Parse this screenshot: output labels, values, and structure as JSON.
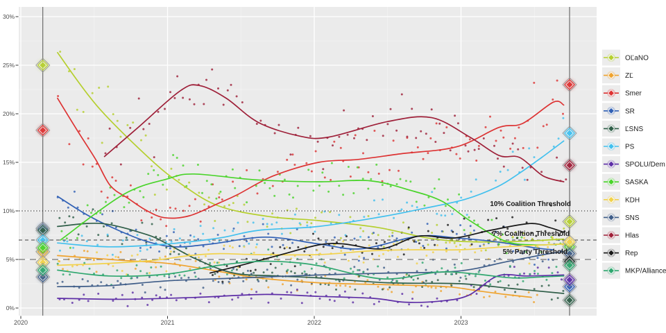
{
  "chart_data": {
    "type": "scatter",
    "description_visible_text_only": true,
    "x_axis": {
      "tick_labels": [
        "2020",
        "2021",
        "2022",
        "2023"
      ],
      "tick_years": [
        2020,
        2021,
        2022,
        2023
      ],
      "range_years": [
        2019.985,
        2023.93
      ]
    },
    "y_axis": {
      "tick_labels": [
        "0%",
        "5%",
        "10%",
        "15%",
        "20%",
        "25%",
        "30%"
      ],
      "tick_values": [
        0,
        5,
        10,
        15,
        20,
        25,
        30
      ],
      "range": [
        -0.8,
        31.0
      ],
      "unit": "%"
    },
    "grid": {
      "major_color": "#ffffff",
      "minor_color": "#f4f4f4",
      "panel_color": "#ebebeb"
    },
    "thresholds": [
      {
        "value": 10,
        "label": "10% Coalition Threshold",
        "style": "dotted",
        "color": "#2b2b2b"
      },
      {
        "value": 7,
        "label": "7% Coalition Threshold",
        "style": "dashed",
        "color": "#3d3d3d"
      },
      {
        "value": 5,
        "label": "5% Party Threshold",
        "style": "longdash",
        "color": "#757575"
      }
    ],
    "election_line_years": [
      2020.15,
      2023.74
    ],
    "election_line_color": "#5f5f5f",
    "series": [
      {
        "name": "OĽaNO",
        "id": "olano",
        "color": "#b5cf2e",
        "trend": [
          [
            2020.25,
            26.3
          ],
          [
            2020.52,
            20.8
          ],
          [
            2020.87,
            15.5
          ],
          [
            2021.09,
            12.8
          ],
          [
            2021.35,
            10.5
          ],
          [
            2021.7,
            9.4
          ],
          [
            2022.03,
            9.0
          ],
          [
            2022.43,
            8.3
          ],
          [
            2022.74,
            7.3
          ],
          [
            2022.95,
            6.9
          ],
          [
            2023.2,
            6.8
          ],
          [
            2023.45,
            6.9
          ],
          [
            2023.7,
            7.1
          ]
        ],
        "result_2020": 25.0,
        "result_2023": 8.9
      },
      {
        "name": "ZĽ",
        "id": "zl",
        "color": "#efa32e",
        "trend": [
          [
            2020.25,
            5.4
          ],
          [
            2020.7,
            4.9
          ],
          [
            2021.0,
            4.6
          ],
          [
            2021.3,
            3.9
          ],
          [
            2021.62,
            3.1
          ],
          [
            2022.03,
            2.6
          ],
          [
            2022.5,
            2.4
          ],
          [
            2022.9,
            2.2
          ],
          [
            2023.1,
            1.8
          ],
          [
            2023.3,
            1.4
          ],
          [
            2023.48,
            1.1
          ]
        ],
        "result_2020": 5.8,
        "result_2023": null
      },
      {
        "name": "Smer",
        "id": "smer",
        "color": "#dd3333",
        "trend": [
          [
            2020.25,
            21.6
          ],
          [
            2020.38,
            18.4
          ],
          [
            2020.51,
            15.3
          ],
          [
            2020.61,
            12.6
          ],
          [
            2020.73,
            11.3
          ],
          [
            2020.85,
            10.1
          ],
          [
            2020.98,
            9.3
          ],
          [
            2021.15,
            9.5
          ],
          [
            2021.35,
            10.8
          ],
          [
            2021.48,
            11.7
          ],
          [
            2021.72,
            13.6
          ],
          [
            2022.03,
            15.0
          ],
          [
            2022.3,
            15.3
          ],
          [
            2022.6,
            15.9
          ],
          [
            2022.97,
            16.6
          ],
          [
            2023.26,
            18.6
          ],
          [
            2023.42,
            19.0
          ],
          [
            2023.63,
            21.2
          ],
          [
            2023.7,
            20.9
          ]
        ],
        "result_2020": 18.3,
        "result_2023": 23.0
      },
      {
        "name": "SR",
        "id": "sr",
        "color": "#3060b5",
        "trend": [
          [
            2020.25,
            11.5
          ],
          [
            2020.45,
            9.6
          ],
          [
            2020.65,
            8.1
          ],
          [
            2020.85,
            6.9
          ],
          [
            2021.05,
            6.3
          ],
          [
            2021.3,
            6.6
          ],
          [
            2021.67,
            7.3
          ],
          [
            2022.03,
            6.6
          ],
          [
            2022.32,
            6.1
          ],
          [
            2022.71,
            7.4
          ],
          [
            2022.98,
            7.2
          ],
          [
            2023.25,
            6.8
          ],
          [
            2023.5,
            6.2
          ],
          [
            2023.63,
            6.0
          ]
        ],
        "result_2020": 8.2,
        "result_2023": 2.2
      },
      {
        "name": "ĽSNS",
        "id": "lsns",
        "color": "#2f5e48",
        "trend": [
          [
            2020.25,
            8.4
          ],
          [
            2020.55,
            8.7
          ],
          [
            2020.85,
            7.6
          ],
          [
            2021.0,
            6.6
          ],
          [
            2021.2,
            5.0
          ],
          [
            2021.45,
            3.6
          ],
          [
            2021.75,
            3.3
          ],
          [
            2022.03,
            3.1
          ],
          [
            2022.5,
            2.6
          ],
          [
            2023.0,
            2.5
          ],
          [
            2023.35,
            2.0
          ],
          [
            2023.7,
            1.5
          ]
        ],
        "result_2020": 8.0,
        "result_2023": 0.8
      },
      {
        "name": "PS",
        "id": "ps",
        "color": "#41c0ee",
        "trend": [
          [
            2020.25,
            6.7
          ],
          [
            2020.6,
            6.3
          ],
          [
            2021.0,
            6.6
          ],
          [
            2021.35,
            7.2
          ],
          [
            2021.62,
            8.0
          ],
          [
            2022.03,
            8.4
          ],
          [
            2022.46,
            9.4
          ],
          [
            2022.73,
            10.2
          ],
          [
            2023.03,
            11.2
          ],
          [
            2023.25,
            12.5
          ],
          [
            2023.4,
            13.9
          ],
          [
            2023.55,
            15.5
          ],
          [
            2023.7,
            17.2
          ]
        ],
        "result_2020": 7.0,
        "result_2023": 18.0
      },
      {
        "name": "SPOLU/Dem",
        "id": "spolu-dem",
        "color": "#5d2ea6",
        "trend": [
          [
            2020.25,
            1.0
          ],
          [
            2020.7,
            0.9
          ],
          [
            2021.2,
            1.1
          ],
          [
            2021.67,
            1.4
          ],
          [
            2022.03,
            1.2
          ],
          [
            2022.4,
            1.0
          ],
          [
            2022.62,
            0.6
          ],
          [
            2022.85,
            0.7
          ],
          [
            2023.05,
            1.3
          ],
          [
            2023.25,
            3.3
          ],
          [
            2023.45,
            3.3
          ],
          [
            2023.7,
            3.4
          ]
        ],
        "result_2020": null,
        "result_2023": 2.9
      },
      {
        "name": "SASKA",
        "id": "saska",
        "color": "#49d42a",
        "trend": [
          [
            2020.27,
            7.0
          ],
          [
            2020.7,
            11.7
          ],
          [
            2021.0,
            13.3
          ],
          [
            2021.18,
            13.8
          ],
          [
            2021.6,
            13.2
          ],
          [
            2022.03,
            13.0
          ],
          [
            2022.38,
            13.1
          ],
          [
            2022.66,
            12.1
          ],
          [
            2022.87,
            11.0
          ],
          [
            2023.06,
            9.0
          ],
          [
            2023.3,
            6.9
          ],
          [
            2023.5,
            6.5
          ],
          [
            2023.7,
            6.6
          ]
        ],
        "result_2020": 6.2,
        "result_2023": 6.3
      },
      {
        "name": "KDH",
        "id": "kdh",
        "color": "#f2d24b",
        "trend": [
          [
            2020.25,
            4.4
          ],
          [
            2020.6,
            4.6
          ],
          [
            2020.9,
            4.9
          ],
          [
            2021.15,
            5.4
          ],
          [
            2021.35,
            5.6
          ],
          [
            2021.62,
            5.5
          ],
          [
            2022.03,
            5.5
          ],
          [
            2022.4,
            5.9
          ],
          [
            2022.7,
            6.0
          ],
          [
            2023.0,
            6.0
          ],
          [
            2023.3,
            6.3
          ],
          [
            2023.7,
            6.6
          ]
        ],
        "result_2020": 4.7,
        "result_2023": 6.8
      },
      {
        "name": "SNS",
        "id": "sns",
        "color": "#3f5d88",
        "trend": [
          [
            2020.25,
            2.2
          ],
          [
            2020.6,
            2.3
          ],
          [
            2021.0,
            2.8
          ],
          [
            2021.5,
            3.1
          ],
          [
            2022.03,
            3.4
          ],
          [
            2022.5,
            3.6
          ],
          [
            2022.98,
            3.8
          ],
          [
            2023.32,
            4.8
          ],
          [
            2023.6,
            5.6
          ],
          [
            2023.7,
            5.8
          ]
        ],
        "result_2020": 3.2,
        "result_2023": 5.6
      },
      {
        "name": "Hlas",
        "id": "hlas",
        "color": "#9e1f38",
        "trend": [
          [
            2020.57,
            15.6
          ],
          [
            2020.8,
            18.6
          ],
          [
            2021.09,
            22.4
          ],
          [
            2021.22,
            22.9
          ],
          [
            2021.4,
            21.6
          ],
          [
            2021.62,
            19.1
          ],
          [
            2021.9,
            17.7
          ],
          [
            2022.1,
            17.6
          ],
          [
            2022.5,
            19.2
          ],
          [
            2022.8,
            19.6
          ],
          [
            2023.06,
            17.6
          ],
          [
            2023.26,
            15.7
          ],
          [
            2023.4,
            15.5
          ],
          [
            2023.56,
            13.6
          ],
          [
            2023.7,
            13.0
          ]
        ],
        "result_2020": null,
        "result_2023": 14.7
      },
      {
        "name": "Rep",
        "id": "rep",
        "color": "#161616",
        "trend": [
          [
            2021.29,
            3.6
          ],
          [
            2021.5,
            4.4
          ],
          [
            2021.75,
            5.4
          ],
          [
            2022.03,
            6.5
          ],
          [
            2022.2,
            6.6
          ],
          [
            2022.46,
            6.1
          ],
          [
            2022.71,
            7.4
          ],
          [
            2022.95,
            7.2
          ],
          [
            2023.2,
            8.0
          ],
          [
            2023.47,
            8.7
          ],
          [
            2023.6,
            8.3
          ],
          [
            2023.7,
            7.8
          ]
        ],
        "result_2020": null,
        "result_2023": 4.8
      },
      {
        "name": "MKP/Alliance",
        "id": "mkp-alliance",
        "color": "#2fa76f",
        "trend": [
          [
            2020.25,
            3.9
          ],
          [
            2020.6,
            3.3
          ],
          [
            2021.0,
            3.5
          ],
          [
            2021.35,
            4.4
          ],
          [
            2021.62,
            4.8
          ],
          [
            2021.85,
            4.7
          ],
          [
            2022.05,
            4.3
          ],
          [
            2022.47,
            3.0
          ],
          [
            2022.85,
            3.7
          ],
          [
            2023.1,
            3.5
          ],
          [
            2023.35,
            3.1
          ],
          [
            2023.55,
            3.2
          ],
          [
            2023.7,
            3.3
          ]
        ],
        "result_2020": 3.9,
        "result_2023": 4.4
      }
    ],
    "scatter_style": {
      "dt_years": 0.033,
      "radius": 1.5,
      "opacity": 0.8,
      "sd_base": 0.5,
      "sd_scale": 0.12,
      "skip_prob": 0.15
    }
  },
  "legend": {
    "items": [
      "OĽaNO",
      "ZĽ",
      "Smer",
      "SR",
      "ĽSNS",
      "PS",
      "SPOLU/Dem",
      "SASKA",
      "KDH",
      "SNS",
      "Hlas",
      "Rep",
      "MKP/Alliance"
    ]
  }
}
